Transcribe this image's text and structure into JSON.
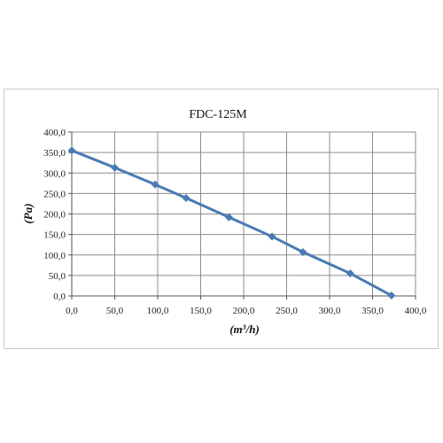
{
  "chart_data": {
    "type": "line",
    "title": "FDC-125M",
    "xlabel": "(m³/h)",
    "ylabel": "(Pa)",
    "xlim": [
      0,
      400
    ],
    "ylim": [
      0,
      400
    ],
    "x_ticks": [
      0,
      50,
      100,
      150,
      200,
      250,
      300,
      350,
      400
    ],
    "y_ticks": [
      0,
      50,
      100,
      150,
      200,
      250,
      300,
      350,
      400
    ],
    "x_tick_labels": [
      "0,0",
      "50,0",
      "100,0",
      "150,0",
      "200,0",
      "250,0",
      "300,0",
      "350,0",
      "400,0"
    ],
    "y_tick_labels": [
      "0,0",
      "50,0",
      "100,0",
      "150,0",
      "200,0",
      "250,0",
      "300,0",
      "350,0",
      "400,0"
    ],
    "grid": true,
    "legend": "none",
    "series": [
      {
        "color": "#4a7ab5",
        "x": [
          0,
          50,
          97,
          133,
          183,
          233,
          269,
          324,
          372
        ],
        "y": [
          355,
          313,
          272,
          239,
          192,
          145,
          107,
          55,
          1
        ]
      }
    ]
  }
}
